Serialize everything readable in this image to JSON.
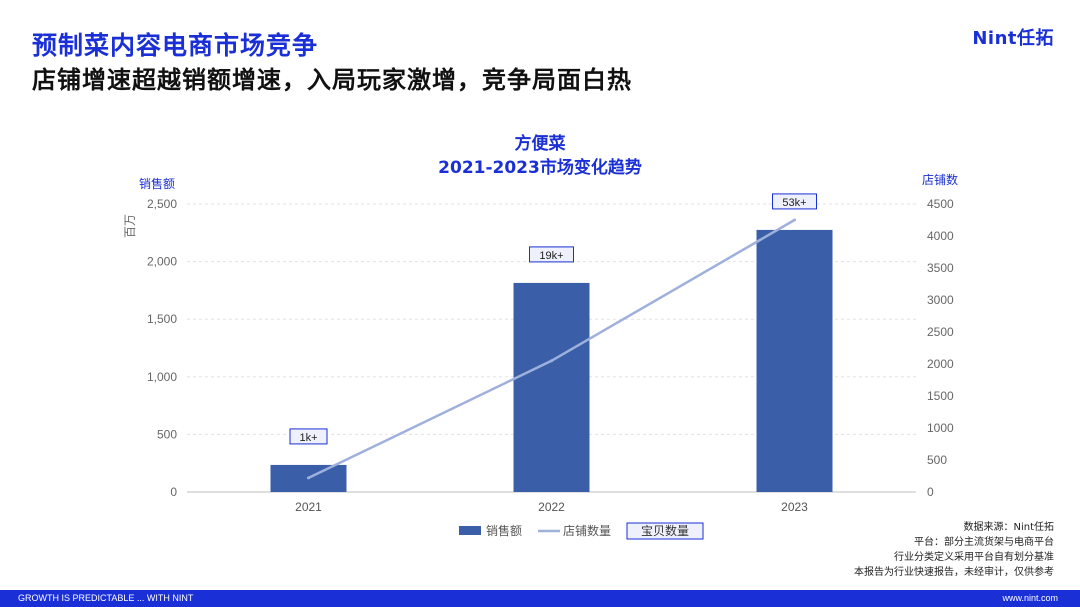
{
  "header": {
    "title": "预制菜内容电商市场竞争",
    "subtitle": "店铺增速超越销额增速，入局玩家激增，竞争局面白热",
    "logo": "Nint任拓"
  },
  "chart_data": {
    "type": "bar",
    "title_line1": "方便菜",
    "title_line2": "2021-2023市场变化趋势",
    "categories": [
      "2021",
      "2022",
      "2023"
    ],
    "left_axis": {
      "label": "销售额",
      "unit": "百万",
      "min": 0,
      "max": 2500,
      "ticks": [
        "0",
        "500",
        "1,000",
        "1,500",
        "2,000",
        "2,500"
      ]
    },
    "right_axis": {
      "label": "店铺数",
      "min": 0,
      "max": 4500,
      "ticks": [
        "0",
        "500",
        "1000",
        "1500",
        "2000",
        "2500",
        "3000",
        "3500",
        "4000",
        "4500"
      ]
    },
    "series": [
      {
        "name": "销售额",
        "type": "bar",
        "axis": "left",
        "values": [
          235,
          1815,
          2275
        ],
        "color": "#3a5fa8"
      },
      {
        "name": "店铺数量",
        "type": "line",
        "axis": "right",
        "values": [
          220,
          2050,
          4250
        ],
        "color": "#9fb0dd"
      }
    ],
    "annotations": {
      "name": "宝贝数量",
      "labels": [
        "1k+",
        "19k+",
        "53k+"
      ]
    },
    "grid": true,
    "legend_position": "bottom"
  },
  "notes": [
    "数据来源：Nint任拓",
    "平台：部分主流货架与电商平台",
    "行业分类定义采用平台自有划分基准",
    "本报告为行业快速报告，未经审计，仅供参考"
  ],
  "footer": {
    "left": "GROWTH IS PREDICTABLE ... WITH NINT",
    "right": "www.nint.com"
  }
}
